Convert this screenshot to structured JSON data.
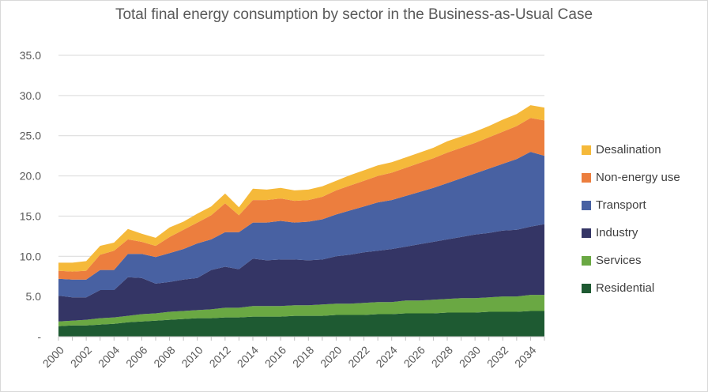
{
  "chart_data": {
    "type": "area",
    "stacked": true,
    "title": "Total final energy consumption by sector in the Business-as-Usual Case",
    "xlabel": "",
    "ylabel": "",
    "ylim": [
      0,
      35
    ],
    "yticks": [
      "-",
      "5.0",
      "10.0",
      "15.0",
      "20.0",
      "25.0",
      "30.0",
      "35.0"
    ],
    "xtick_labels": [
      "2000",
      "2002",
      "2004",
      "2006",
      "2008",
      "2010",
      "2012",
      "2014",
      "2016",
      "2018",
      "2020",
      "2022",
      "2024",
      "2026",
      "2028",
      "2030",
      "2032",
      "2034"
    ],
    "grid": true,
    "legend_position": "right",
    "x": [
      2000,
      2001,
      2002,
      2003,
      2004,
      2005,
      2006,
      2007,
      2008,
      2009,
      2010,
      2011,
      2012,
      2013,
      2014,
      2015,
      2016,
      2017,
      2018,
      2019,
      2020,
      2021,
      2022,
      2023,
      2024,
      2025,
      2026,
      2027,
      2028,
      2029,
      2030,
      2031,
      2032,
      2033,
      2034,
      2035
    ],
    "series": [
      {
        "name": "Residential",
        "color": "#1e5a32",
        "values": [
          1.3,
          1.4,
          1.4,
          1.5,
          1.6,
          1.8,
          1.9,
          2.0,
          2.1,
          2.2,
          2.3,
          2.3,
          2.4,
          2.4,
          2.5,
          2.5,
          2.5,
          2.6,
          2.6,
          2.6,
          2.7,
          2.7,
          2.7,
          2.8,
          2.8,
          2.9,
          2.9,
          2.9,
          3.0,
          3.0,
          3.0,
          3.1,
          3.1,
          3.1,
          3.2,
          3.2
        ]
      },
      {
        "name": "Services",
        "color": "#6aa843",
        "values": [
          0.6,
          0.6,
          0.7,
          0.8,
          0.8,
          0.8,
          0.9,
          0.9,
          1.0,
          1.0,
          1.0,
          1.1,
          1.2,
          1.2,
          1.3,
          1.3,
          1.3,
          1.3,
          1.3,
          1.4,
          1.4,
          1.4,
          1.5,
          1.5,
          1.5,
          1.6,
          1.6,
          1.7,
          1.7,
          1.8,
          1.8,
          1.8,
          1.9,
          1.9,
          2.0,
          2.0
        ]
      },
      {
        "name": "Industry",
        "color": "#343565",
        "values": [
          3.2,
          2.9,
          2.8,
          3.5,
          3.4,
          4.8,
          4.5,
          3.7,
          3.7,
          3.9,
          4.0,
          4.9,
          5.1,
          4.8,
          5.9,
          5.7,
          5.8,
          5.7,
          5.6,
          5.6,
          5.9,
          6.1,
          6.3,
          6.4,
          6.6,
          6.7,
          7.0,
          7.2,
          7.4,
          7.6,
          7.9,
          8.0,
          8.2,
          8.3,
          8.5,
          8.8
        ]
      },
      {
        "name": "Transport",
        "color": "#4861a2",
        "values": [
          2.1,
          2.2,
          2.2,
          2.5,
          2.5,
          2.9,
          3.0,
          3.3,
          3.6,
          3.8,
          4.3,
          3.8,
          4.3,
          4.6,
          4.5,
          4.7,
          4.8,
          4.6,
          4.8,
          5.0,
          5.2,
          5.5,
          5.7,
          6.0,
          6.1,
          6.3,
          6.5,
          6.7,
          7.0,
          7.3,
          7.6,
          8.0,
          8.3,
          8.8,
          9.3,
          8.5
        ]
      },
      {
        "name": "Non-energy use",
        "color": "#ec7e3e",
        "values": [
          1.0,
          1.0,
          1.1,
          1.9,
          2.4,
          1.8,
          1.5,
          1.4,
          2.0,
          2.4,
          2.6,
          3.0,
          3.6,
          2.1,
          2.8,
          2.8,
          2.8,
          2.7,
          2.7,
          2.8,
          3.0,
          3.1,
          3.2,
          3.3,
          3.4,
          3.5,
          3.6,
          3.7,
          3.8,
          3.8,
          3.8,
          3.9,
          4.0,
          4.1,
          4.2,
          4.4
        ]
      },
      {
        "name": "Desalination",
        "color": "#f5b93a",
        "values": [
          1.0,
          1.1,
          1.2,
          1.1,
          1.0,
          1.3,
          1.0,
          1.0,
          1.2,
          1.0,
          1.1,
          1.1,
          1.2,
          1.0,
          1.4,
          1.3,
          1.3,
          1.3,
          1.3,
          1.3,
          1.2,
          1.3,
          1.3,
          1.3,
          1.3,
          1.3,
          1.3,
          1.3,
          1.4,
          1.4,
          1.4,
          1.4,
          1.5,
          1.5,
          1.6,
          1.6
        ]
      }
    ]
  }
}
